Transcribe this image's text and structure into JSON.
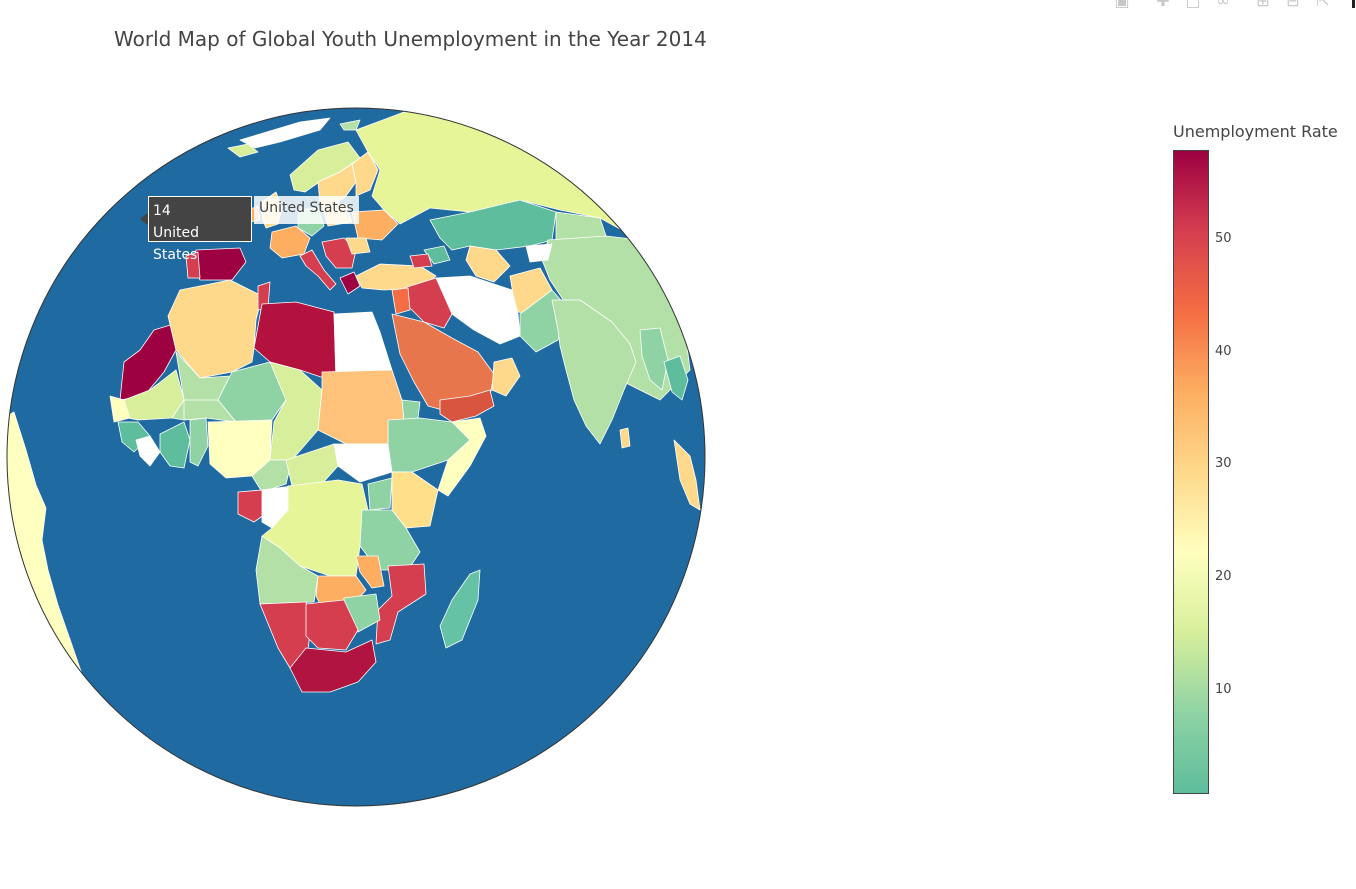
{
  "title": "World Map of Global Youth Unemployment in the Year 2014",
  "modebar": {
    "buttons": [
      "camera-icon",
      "pan-icon",
      "box-select-icon",
      "lasso-icon",
      "zoom-in-icon",
      "zoom-out-icon",
      "reset-icon"
    ]
  },
  "hover": {
    "value": "14",
    "country": "United States",
    "name_label": "United States"
  },
  "colorbar": {
    "title": "Unemployment Rate",
    "ticks": [
      "10",
      "20",
      "30",
      "40",
      "50"
    ],
    "colorscale": [
      "#5ebd9c",
      "#8fd3a4",
      "#d7ef9b",
      "#ffffbf",
      "#fed98b",
      "#fdae61",
      "#f46d43",
      "#d53e4f",
      "#9e0142"
    ]
  },
  "chart_data": {
    "type": "choropleth",
    "projection": "orthographic",
    "title": "World Map of Global Youth Unemployment in the Year 2014",
    "colorbar_title": "Unemployment Rate",
    "range": [
      0.7,
      57.5
    ],
    "colorscale": "Spectral (reversed)",
    "ocean_color": "#1f6aa0",
    "countries": [
      {
        "name": "United States",
        "value": 14
      }
    ]
  }
}
